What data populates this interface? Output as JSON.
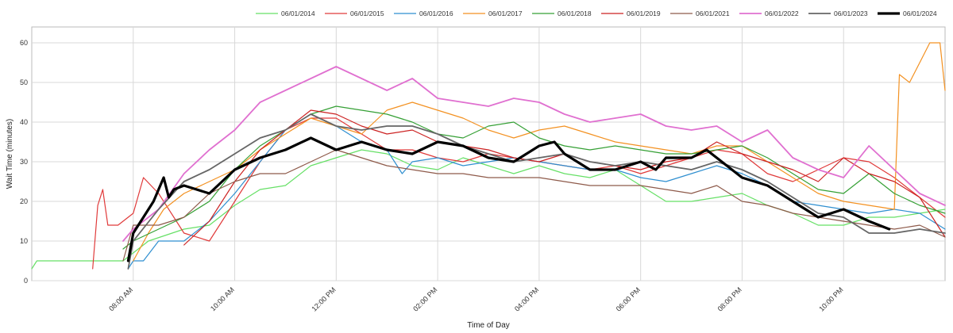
{
  "chart_data": {
    "type": "line",
    "xlabel": "Time of Day",
    "ylabel": "Wait Time (minutes)",
    "xlim": [
      6.0,
      24.0
    ],
    "ylim": [
      0,
      64
    ],
    "x_ticks": [
      {
        "value": 8,
        "label": "08:00 AM"
      },
      {
        "value": 10,
        "label": "10:00 AM"
      },
      {
        "value": 12,
        "label": "12:00 PM"
      },
      {
        "value": 14,
        "label": "02:00 PM"
      },
      {
        "value": 16,
        "label": "04:00 PM"
      },
      {
        "value": 18,
        "label": "06:00 PM"
      },
      {
        "value": 20,
        "label": "08:00 PM"
      },
      {
        "value": 22,
        "label": "10:00 PM"
      }
    ],
    "y_ticks": [
      0,
      10,
      20,
      30,
      40,
      50,
      60
    ],
    "grid": true,
    "legend_position": "top-right",
    "series": [
      {
        "name": "06/01/2014",
        "color": "#66e066",
        "width": 1.2,
        "x": [
          6.0,
          6.1,
          7.0,
          7.8,
          8.3,
          9.0,
          9.5,
          10.0,
          10.5,
          11.0,
          11.5,
          12.0,
          12.5,
          13.0,
          13.5,
          14.0,
          14.5,
          15.0,
          15.5,
          16.0,
          16.5,
          17.0,
          17.5,
          18.0,
          18.5,
          19.0,
          19.5,
          20.0,
          20.5,
          21.0,
          21.5,
          22.0,
          22.5,
          23.0,
          23.5,
          24.0
        ],
        "y": [
          3,
          5,
          5,
          5,
          10,
          13,
          14,
          19,
          23,
          24,
          29,
          31,
          33,
          32,
          29,
          28,
          31,
          29,
          27,
          29,
          27,
          26,
          28,
          24,
          20,
          20,
          21,
          22,
          19,
          17,
          14,
          14,
          16,
          16,
          17,
          18
        ]
      },
      {
        "name": "06/01/2015",
        "color": "#e03a3a",
        "width": 1.2,
        "x": [
          7.2,
          7.3,
          7.4,
          7.5,
          7.7,
          8.0,
          8.2,
          8.5,
          9.0,
          9.5,
          10.0,
          10.5,
          11.0,
          11.5,
          12.0,
          12.5,
          13.0,
          13.5,
          14.0,
          14.5,
          15.0,
          15.5,
          16.0,
          16.5,
          17.0,
          17.5,
          18.0,
          18.5,
          19.0,
          19.5,
          20.0,
          20.5,
          21.0,
          21.5,
          22.0,
          22.5,
          23.0,
          23.5,
          24.0
        ],
        "y": [
          3,
          19,
          23,
          14,
          14,
          17,
          26,
          22,
          12,
          10,
          20,
          30,
          38,
          41,
          41,
          37,
          33,
          33,
          31,
          30,
          32,
          31,
          30,
          29,
          28,
          29,
          27,
          29,
          31,
          33,
          32,
          27,
          25,
          28,
          31,
          30,
          26,
          21,
          16
        ]
      },
      {
        "name": "06/01/2016",
        "color": "#2f8fd0",
        "width": 1.2,
        "x": [
          7.9,
          8.0,
          8.2,
          8.5,
          9.0,
          9.5,
          10.0,
          10.5,
          11.0,
          11.5,
          12.0,
          12.5,
          13.0,
          13.3,
          13.5,
          14.0,
          14.5,
          15.0,
          15.5,
          16.0,
          16.5,
          17.0,
          17.5,
          18.0,
          18.5,
          19.0,
          19.5,
          20.0,
          20.5,
          21.0,
          21.5,
          22.0,
          22.5,
          23.0,
          23.5,
          24.0
        ],
        "y": [
          3,
          5,
          5,
          10,
          10,
          15,
          22,
          30,
          38,
          42,
          39,
          35,
          33,
          27,
          30,
          31,
          29,
          30,
          31,
          30,
          29,
          28,
          28,
          26,
          25,
          27,
          29,
          27,
          24,
          20,
          19,
          18,
          17,
          18,
          17,
          13
        ]
      },
      {
        "name": "06/01/2017",
        "color": "#f39121",
        "width": 1.2,
        "x": [
          8.0,
          8.3,
          8.6,
          9.0,
          9.5,
          10.0,
          10.5,
          11.0,
          11.5,
          12.0,
          12.5,
          13.0,
          13.5,
          14.0,
          14.5,
          15.0,
          15.5,
          16.0,
          16.5,
          17.0,
          17.5,
          18.0,
          18.5,
          19.0,
          19.5,
          20.0,
          20.5,
          21.0,
          21.5,
          22.0,
          22.5,
          23.0,
          23.1,
          23.3,
          23.5,
          23.7,
          23.9,
          24.0
        ],
        "y": [
          5,
          12,
          18,
          22,
          25,
          28,
          33,
          37,
          41,
          39,
          37,
          43,
          45,
          43,
          41,
          38,
          36,
          38,
          39,
          37,
          35,
          34,
          33,
          32,
          34,
          34,
          30,
          26,
          22,
          20,
          19,
          18,
          52,
          50,
          55,
          60,
          60,
          48
        ]
      },
      {
        "name": "06/01/2018",
        "color": "#35a035",
        "width": 1.2,
        "x": [
          7.8,
          8.0,
          8.5,
          9.0,
          9.5,
          10.0,
          10.5,
          11.0,
          11.5,
          12.0,
          12.5,
          13.0,
          13.5,
          14.0,
          14.5,
          15.0,
          15.5,
          16.0,
          16.5,
          17.0,
          17.5,
          18.0,
          18.5,
          19.0,
          19.5,
          20.0,
          20.5,
          21.0,
          21.5,
          22.0,
          22.5,
          23.0,
          23.5,
          24.0
        ],
        "y": [
          8,
          10,
          13,
          16,
          20,
          28,
          34,
          38,
          42,
          44,
          43,
          42,
          40,
          37,
          36,
          39,
          40,
          36,
          34,
          33,
          34,
          33,
          32,
          32,
          33,
          34,
          31,
          27,
          23,
          22,
          27,
          22,
          19,
          17
        ]
      },
      {
        "name": "06/01/2019",
        "color": "#cc2222",
        "width": 1.2,
        "x": [
          9.0,
          9.5,
          10.0,
          10.5,
          11.0,
          11.5,
          12.0,
          12.5,
          13.0,
          13.5,
          14.0,
          14.5,
          15.0,
          15.5,
          16.0,
          16.5,
          17.0,
          17.5,
          18.0,
          18.5,
          19.0,
          19.5,
          20.0,
          20.5,
          21.0,
          21.5,
          22.0,
          22.5,
          23.0,
          23.5,
          24.0
        ],
        "y": [
          9,
          15,
          25,
          33,
          38,
          43,
          42,
          39,
          37,
          38,
          35,
          34,
          33,
          31,
          30,
          32,
          30,
          29,
          28,
          30,
          31,
          35,
          32,
          30,
          28,
          25,
          31,
          27,
          25,
          21,
          11
        ]
      },
      {
        "name": "06/01/2021",
        "color": "#8e5a4a",
        "width": 1.2,
        "x": [
          7.8,
          8.0,
          8.5,
          9.0,
          9.5,
          10.0,
          10.5,
          11.0,
          11.5,
          12.0,
          12.5,
          13.0,
          13.5,
          14.0,
          14.5,
          15.0,
          15.5,
          16.0,
          16.5,
          17.0,
          17.5,
          18.0,
          18.5,
          19.0,
          19.5,
          20.0,
          20.5,
          21.0,
          21.5,
          22.0,
          22.5,
          23.0,
          23.5,
          24.0
        ],
        "y": [
          5,
          14,
          14,
          16,
          22,
          25,
          27,
          27,
          30,
          33,
          31,
          29,
          28,
          27,
          27,
          26,
          26,
          26,
          25,
          24,
          24,
          24,
          23,
          22,
          24,
          20,
          19,
          17,
          16,
          15,
          14,
          13,
          14,
          11
        ]
      },
      {
        "name": "06/01/2022",
        "color": "#e070d0",
        "width": 1.8,
        "x": [
          7.8,
          8.0,
          8.5,
          9.0,
          9.5,
          10.0,
          10.5,
          11.0,
          11.5,
          12.0,
          12.5,
          13.0,
          13.5,
          14.0,
          14.5,
          15.0,
          15.5,
          16.0,
          16.5,
          17.0,
          17.5,
          18.0,
          18.5,
          19.0,
          19.5,
          20.0,
          20.5,
          21.0,
          21.5,
          22.0,
          22.5,
          23.0,
          23.5,
          24.0
        ],
        "y": [
          10,
          13,
          18,
          27,
          33,
          38,
          45,
          48,
          51,
          54,
          51,
          48,
          51,
          46,
          45,
          44,
          46,
          45,
          42,
          40,
          41,
          42,
          39,
          38,
          39,
          35,
          38,
          31,
          28,
          26,
          34,
          28,
          22,
          19
        ]
      },
      {
        "name": "06/01/2023",
        "color": "#666666",
        "width": 1.8,
        "x": [
          7.9,
          8.0,
          8.5,
          9.0,
          9.5,
          10.0,
          10.5,
          11.0,
          11.5,
          12.0,
          12.5,
          13.0,
          13.5,
          14.0,
          14.5,
          15.0,
          15.5,
          16.0,
          16.5,
          17.0,
          17.5,
          18.0,
          18.5,
          19.0,
          19.5,
          20.0,
          20.5,
          21.0,
          21.5,
          22.0,
          22.5,
          23.0,
          23.5,
          24.0
        ],
        "y": [
          3,
          10,
          18,
          25,
          28,
          32,
          36,
          38,
          42,
          39,
          38,
          39,
          39,
          37,
          34,
          32,
          30,
          31,
          32,
          30,
          29,
          30,
          29,
          28,
          30,
          28,
          25,
          21,
          17,
          16,
          12,
          12,
          13,
          12
        ]
      },
      {
        "name": "06/01/2024",
        "color": "#000000",
        "width": 3.2,
        "x": [
          7.9,
          8.0,
          8.2,
          8.4,
          8.6,
          8.7,
          8.8,
          9.0,
          9.5,
          10.0,
          10.5,
          11.0,
          11.5,
          12.0,
          12.5,
          13.0,
          13.5,
          14.0,
          14.5,
          15.0,
          15.5,
          16.0,
          16.3,
          16.5,
          17.0,
          17.5,
          18.0,
          18.3,
          18.5,
          19.0,
          19.3,
          19.5,
          20.0,
          20.5,
          21.0,
          21.5,
          22.0,
          22.5,
          22.9
        ],
        "y": [
          5,
          12,
          16,
          20,
          26,
          21,
          23,
          24,
          22,
          28,
          31,
          33,
          36,
          33,
          35,
          33,
          32,
          35,
          34,
          31,
          30,
          34,
          35,
          32,
          28,
          28,
          30,
          28,
          31,
          31,
          33,
          31,
          26,
          24,
          20,
          16,
          18,
          15,
          13
        ]
      }
    ]
  }
}
